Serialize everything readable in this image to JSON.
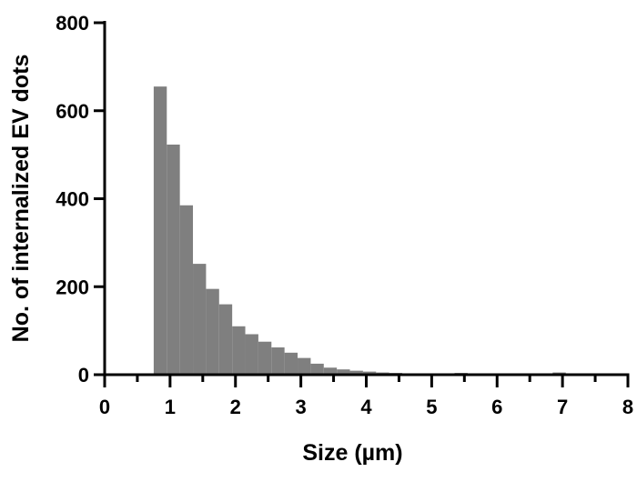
{
  "chart_data": {
    "type": "bar",
    "title": "",
    "xlabel": "Size (µm)",
    "ylabel": "No. of internalized EV dots",
    "xlim": [
      0,
      8
    ],
    "ylim": [
      0,
      800
    ],
    "xticks": [
      "0",
      "1",
      "2",
      "3",
      "4",
      "5",
      "6",
      "7",
      "8"
    ],
    "yticks": [
      "0",
      "200",
      "400",
      "600",
      "800"
    ],
    "bin_width": 0.2,
    "bin_starts": [
      0.75,
      0.95,
      1.15,
      1.35,
      1.55,
      1.75,
      1.95,
      2.15,
      2.35,
      2.55,
      2.75,
      2.95,
      3.15,
      3.35,
      3.55,
      3.75,
      3.95,
      4.15,
      4.35,
      4.55,
      5.35,
      6.85
    ],
    "values": [
      655,
      523,
      385,
      252,
      195,
      160,
      110,
      92,
      75,
      62,
      50,
      38,
      25,
      16,
      12,
      9,
      7,
      5,
      4,
      3,
      4,
      5
    ],
    "bar_color": "#7f7f7f",
    "grid": false,
    "legend": "none"
  }
}
